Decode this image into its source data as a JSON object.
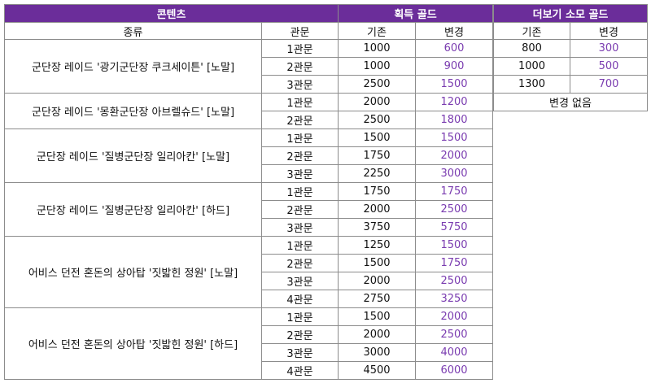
{
  "headers": {
    "content": "콘텐츠",
    "gold_gain": "획득 골드",
    "more_cost": "더보기 소모 골드",
    "kind": "종류",
    "gate": "관문",
    "base": "기존",
    "changed": "변경",
    "more_base": "기존",
    "more_changed": "변경"
  },
  "groups": [
    {
      "name": "군단장 레이드 '광기군단장 쿠크세이튼' [노말]",
      "rows": [
        [
          "1관문",
          "1000",
          "600"
        ],
        [
          "2관문",
          "1000",
          "900"
        ],
        [
          "3관문",
          "2500",
          "1500"
        ]
      ]
    },
    {
      "name": "군단장 레이드 '몽환군단장 아브렐슈드' [노말]",
      "rows": [
        [
          "1관문",
          "2000",
          "1200"
        ],
        [
          "2관문",
          "2500",
          "1800"
        ]
      ]
    },
    {
      "name": "군단장 레이드 '질병군단장 일리아칸' [노말]",
      "rows": [
        [
          "1관문",
          "1500",
          "1500"
        ],
        [
          "2관문",
          "1750",
          "2000"
        ],
        [
          "3관문",
          "2250",
          "3000"
        ]
      ]
    },
    {
      "name": "군단장 레이드 '질병군단장 일리아칸' [하드]",
      "rows": [
        [
          "1관문",
          "1750",
          "1750"
        ],
        [
          "2관문",
          "2000",
          "2500"
        ],
        [
          "3관문",
          "3750",
          "5750"
        ]
      ]
    },
    {
      "name": "어비스 던전 혼돈의 상아탑 '짓밟힌 정원' [노말]",
      "rows": [
        [
          "1관문",
          "1250",
          "1500"
        ],
        [
          "2관문",
          "1500",
          "1750"
        ],
        [
          "3관문",
          "2000",
          "2500"
        ],
        [
          "4관문",
          "2750",
          "3250"
        ]
      ]
    },
    {
      "name": "어비스 던전 혼돈의 상아탑 '짓밟힌 정원' [하드]",
      "rows": [
        [
          "1관문",
          "1500",
          "2000"
        ],
        [
          "2관문",
          "2000",
          "2500"
        ],
        [
          "3관문",
          "3000",
          "4000"
        ],
        [
          "4관문",
          "4500",
          "6000"
        ]
      ]
    }
  ],
  "more_rows": [
    [
      "800",
      "300"
    ],
    [
      "1000",
      "500"
    ],
    [
      "1300",
      "700"
    ]
  ],
  "no_change": "변경 없음",
  "colors": {
    "header_bg": "#6b2d9a",
    "changed_text": "#7a3cb0"
  }
}
